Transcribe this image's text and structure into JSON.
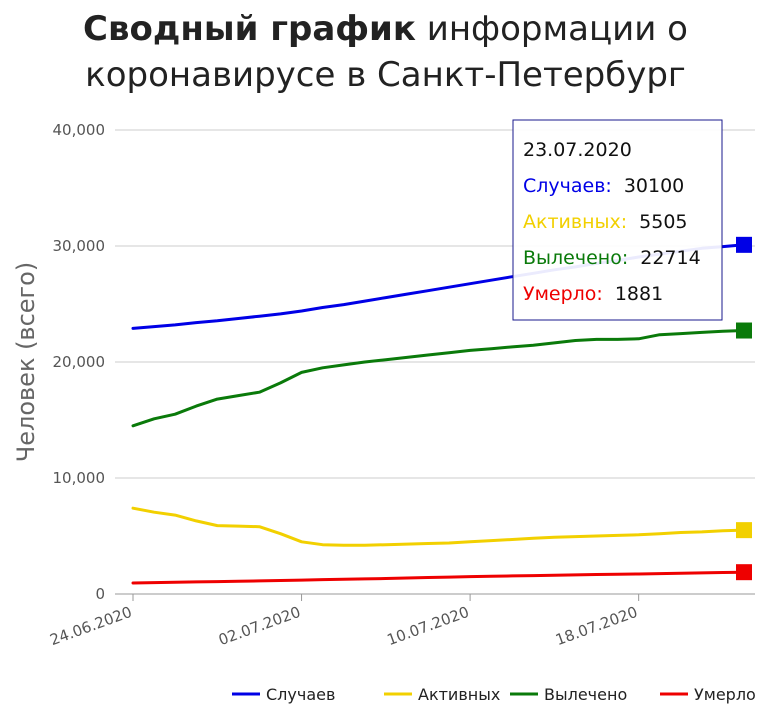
{
  "title": {
    "bold": "Сводный график",
    "rest_line1": " информации о",
    "line2": "коронавирусе в Санкт-Петербург"
  },
  "colors": {
    "cases": "#0000e6",
    "active": "#f2d000",
    "recovered": "#0a7a0a",
    "deaths": "#ee0000",
    "grid": "#cccccc",
    "axis": "#999999"
  },
  "tooltip": {
    "date": "23.07.2020",
    "rows": [
      {
        "label": "Случаев:",
        "value": "30100",
        "color": "#0000e6"
      },
      {
        "label": "Активных:",
        "value": "5505",
        "color": "#f2d000"
      },
      {
        "label": "Вылечено:",
        "value": "22714",
        "color": "#0a7a0a"
      },
      {
        "label": "Умерло:",
        "value": "1881",
        "color": "#ee0000"
      }
    ]
  },
  "chart_data": {
    "type": "line",
    "ylabel": "Человек (всего)",
    "ylim": [
      0,
      40000
    ],
    "yticks": [
      "0",
      "10,000",
      "20,000",
      "30,000",
      "40,000"
    ],
    "ytick_values": [
      0,
      10000,
      20000,
      30000,
      40000
    ],
    "xticks": [
      "24.06.2020",
      "02.07.2020",
      "10.07.2020",
      "18.07.2020"
    ],
    "x": [
      "24.06.2020",
      "25.06.2020",
      "26.06.2020",
      "27.06.2020",
      "28.06.2020",
      "29.06.2020",
      "30.06.2020",
      "01.07.2020",
      "02.07.2020",
      "03.07.2020",
      "04.07.2020",
      "05.07.2020",
      "06.07.2020",
      "07.07.2020",
      "08.07.2020",
      "09.07.2020",
      "10.07.2020",
      "11.07.2020",
      "12.07.2020",
      "13.07.2020",
      "14.07.2020",
      "15.07.2020",
      "16.07.2020",
      "17.07.2020",
      "18.07.2020",
      "19.07.2020",
      "20.07.2020",
      "21.07.2020",
      "22.07.2020",
      "23.07.2020"
    ],
    "grid": true,
    "legend_position": "bottom",
    "series": [
      {
        "name": "Случаев",
        "color": "#0000e6",
        "values": [
          22900,
          23050,
          23200,
          23400,
          23550,
          23750,
          23950,
          24150,
          24400,
          24700,
          24950,
          25250,
          25550,
          25850,
          26150,
          26450,
          26750,
          27050,
          27350,
          27650,
          27950,
          28200,
          28500,
          28750,
          29050,
          29300,
          29550,
          29800,
          29950,
          30100
        ]
      },
      {
        "name": "Активных",
        "color": "#f2d000",
        "values": [
          7400,
          7050,
          6800,
          6300,
          5900,
          5850,
          5800,
          5200,
          4500,
          4250,
          4200,
          4200,
          4250,
          4300,
          4350,
          4400,
          4500,
          4600,
          4700,
          4800,
          4900,
          4950,
          5000,
          5050,
          5100,
          5200,
          5300,
          5350,
          5450,
          5505
        ]
      },
      {
        "name": "Вылечено",
        "color": "#0a7a0a",
        "values": [
          14500,
          15100,
          15500,
          16200,
          16800,
          17100,
          17400,
          18200,
          19100,
          19500,
          19750,
          20000,
          20200,
          20400,
          20600,
          20800,
          21000,
          21150,
          21300,
          21450,
          21650,
          21850,
          21950,
          21950,
          22000,
          22350,
          22450,
          22550,
          22650,
          22714
        ]
      },
      {
        "name": "Умерло",
        "color": "#ee0000",
        "values": [
          950,
          980,
          1010,
          1040,
          1070,
          1100,
          1130,
          1160,
          1200,
          1240,
          1270,
          1300,
          1340,
          1380,
          1420,
          1460,
          1500,
          1530,
          1560,
          1590,
          1620,
          1650,
          1680,
          1700,
          1720,
          1760,
          1790,
          1820,
          1850,
          1881
        ]
      }
    ]
  }
}
